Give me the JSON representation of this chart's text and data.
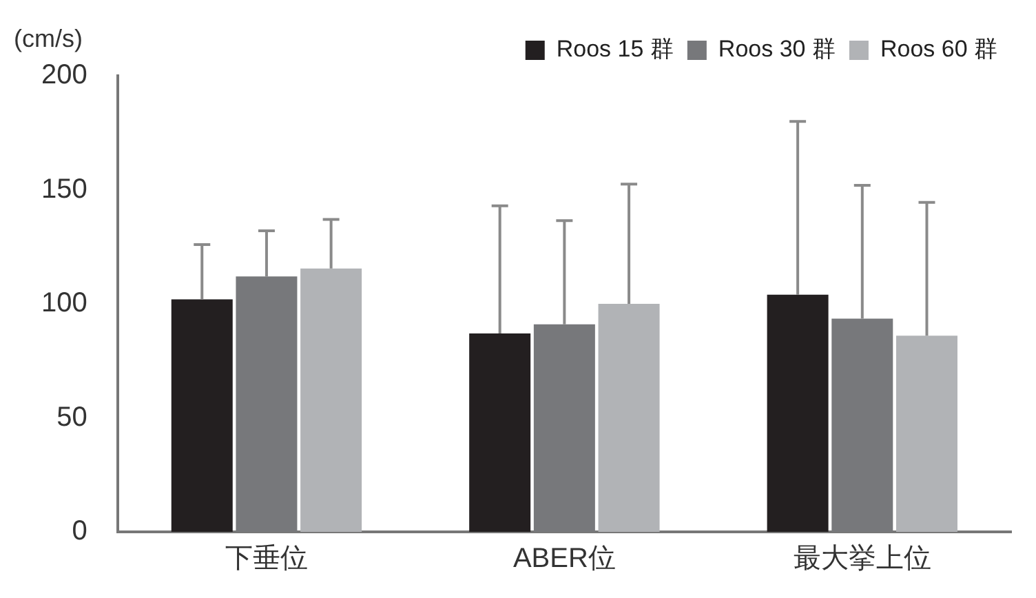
{
  "chart_data": {
    "type": "bar",
    "ylabel": "(cm/s)",
    "categories": [
      "下垂位",
      "ABER位",
      "最大挙上位"
    ],
    "series": [
      {
        "name": "Roos 15 群",
        "color": "#231f20",
        "values": [
          102,
          87,
          104
        ],
        "errors": [
          [
            102,
            126
          ],
          [
            87,
            143
          ],
          [
            104,
            180
          ]
        ]
      },
      {
        "name": "Roos 30 群",
        "color": "#77787b",
        "values": [
          112,
          91,
          93.5
        ],
        "errors": [
          [
            112,
            132
          ],
          [
            91,
            136.5
          ],
          [
            93.5,
            152
          ]
        ]
      },
      {
        "name": "Roos 60 群",
        "color": "#b1b3b6",
        "values": [
          115.5,
          100,
          86
        ],
        "errors": [
          [
            115.5,
            137
          ],
          [
            100,
            152.5
          ],
          [
            86,
            144.5
          ]
        ]
      }
    ],
    "ylim": [
      0,
      200
    ],
    "yticks": [
      0,
      50,
      100,
      150,
      200
    ],
    "grid": false,
    "legend": "top right"
  }
}
